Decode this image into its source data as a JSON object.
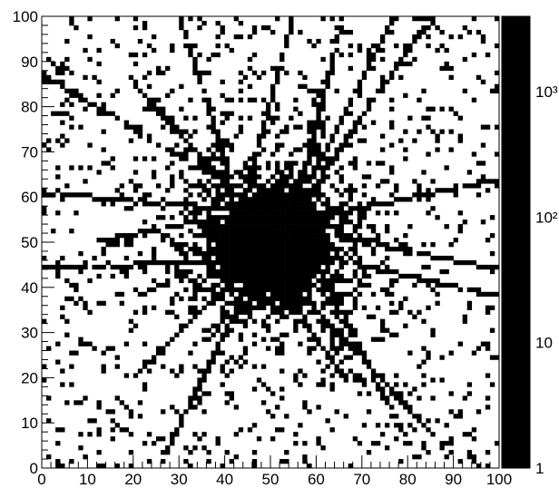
{
  "chart_data": {
    "type": "heatmap",
    "title": "",
    "xlabel": "",
    "ylabel": "",
    "xlim": [
      0,
      100
    ],
    "ylim": [
      0,
      100
    ],
    "bins": [
      100,
      100
    ],
    "x_ticks": [
      "0",
      "10",
      "20",
      "30",
      "40",
      "50",
      "60",
      "70",
      "80",
      "90",
      "100"
    ],
    "y_ticks": [
      "0",
      "10",
      "20",
      "30",
      "40",
      "50",
      "60",
      "70",
      "80",
      "90",
      "100"
    ],
    "z_scale": "log",
    "z_range": [
      1,
      4000
    ],
    "colorbar_ticks": [
      {
        "value": 1,
        "label": "1"
      },
      {
        "value": 10,
        "label": "10"
      },
      {
        "value": 100,
        "label": "10²"
      },
      {
        "value": 1000,
        "label": "10³"
      }
    ],
    "colormap": "cividis",
    "grid": false,
    "description_data": {
      "peak_center": [
        50,
        50
      ],
      "peak_value": 3500
    }
  }
}
